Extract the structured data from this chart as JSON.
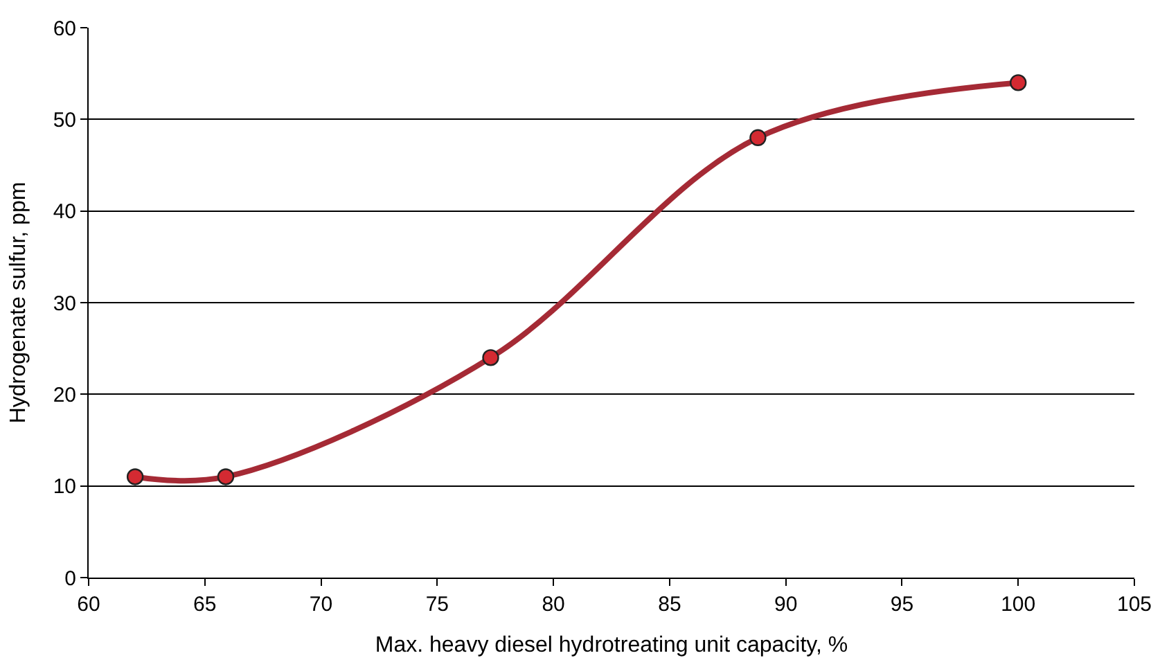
{
  "chart_data": {
    "type": "line",
    "xlabel": "Max. heavy diesel hydrotreating unit capacity, %",
    "ylabel": "Hydrogenate sulfur, ppm",
    "x": [
      62,
      65.9,
      77.3,
      88.8,
      100
    ],
    "series": [
      {
        "color": "#a52a35",
        "values": [
          11,
          11,
          24,
          48,
          54
        ]
      }
    ],
    "xlim": [
      60,
      105
    ],
    "xticks": [
      60,
      65,
      70,
      75,
      80,
      85,
      90,
      95,
      100,
      105
    ],
    "ylim": [
      0,
      60
    ],
    "yticks": [
      0,
      10,
      20,
      30,
      40,
      50,
      60
    ],
    "grid": "y",
    "marker": "circle",
    "line_style": "solid",
    "legend": false
  }
}
